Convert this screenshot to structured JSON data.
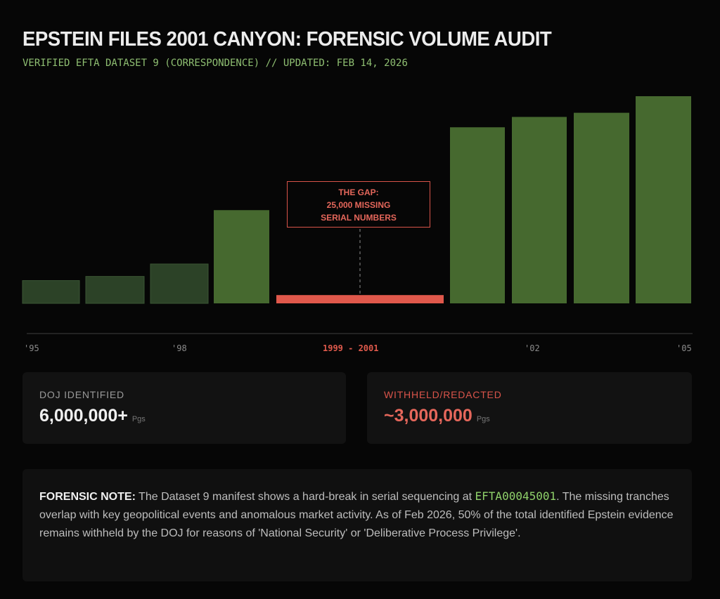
{
  "header": {
    "title": "EPSTEIN FILES 2001 CANYON: FORENSIC VOLUME AUDIT",
    "subtitle": "VERIFIED EFTA DATASET 9 (CORRESPONDENCE) // UPDATED: FEB 14, 2026"
  },
  "chart_data": {
    "type": "bar",
    "title": "",
    "xlabel": "",
    "ylabel": "",
    "y_axis": "none (unlabeled; values are relative bar heights, % of tallest bar)",
    "values": [
      11,
      13,
      19,
      45,
      4,
      85,
      90,
      92,
      100
    ],
    "bar_kinds": [
      "dim",
      "dim",
      "dim",
      "bright",
      "gap",
      "bright",
      "bright",
      "bright",
      "bright"
    ],
    "tick_labels": [
      "'95",
      "'98",
      "1999 - 2001",
      "'02",
      "'05"
    ],
    "annotation": {
      "line1": "THE GAP:",
      "line2": "25,000 MISSING",
      "line3": "SERIAL NUMBERS"
    },
    "colors": {
      "dim": "#2c4227",
      "bright": "#46692f",
      "gap": "#e0584b"
    },
    "grid": false,
    "legend": "none"
  },
  "stats": [
    {
      "label": "DOJ IDENTIFIED",
      "value": "6,000,000+",
      "unit": "Pgs"
    },
    {
      "label": "WITHHELD/REDACTED",
      "value": "~3,000,000",
      "unit": "Pgs"
    }
  ],
  "note": {
    "label": "FORENSIC NOTE:",
    "text1": " The Dataset 9 manifest shows a hard-break in serial sequencing at ",
    "code": "EFTA00045001",
    "text2": ". The missing tranches overlap with key geopolitical events and anomalous market activity. As of Feb 2026, 50% of the total identified Epstein evidence remains withheld by the DOJ for reasons of 'National Security' or 'Deliberative Process Privilege'."
  }
}
